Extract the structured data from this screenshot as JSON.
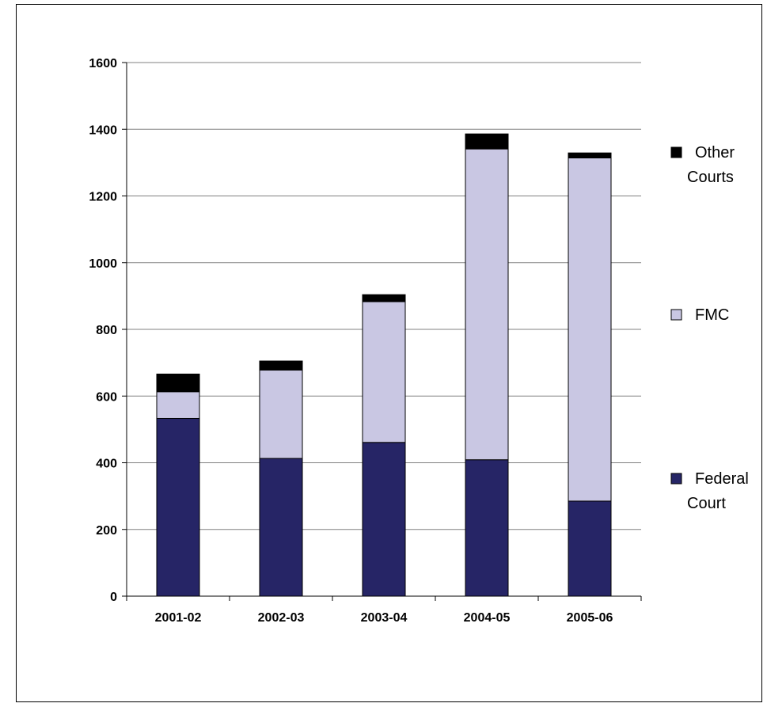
{
  "chart_data": {
    "type": "bar",
    "stacked": true,
    "categories": [
      "2001-02",
      "2002-03",
      "2003-04",
      "2004-05",
      "2005-06"
    ],
    "series": [
      {
        "name": "Federal Court",
        "color": "#262566",
        "values": [
          533,
          413,
          461,
          409,
          285
        ]
      },
      {
        "name": "FMC",
        "color": "#c9c7e3",
        "values": [
          80,
          265,
          422,
          932,
          1029
        ]
      },
      {
        "name": "Other Courts",
        "color": "#000000",
        "values": [
          53,
          27,
          21,
          45,
          15
        ]
      }
    ],
    "ylim": [
      0,
      1600
    ],
    "yticks": [
      "0",
      "200",
      "400",
      "600",
      "800",
      "1000",
      "1200",
      "1400",
      "1600"
    ],
    "grid": true,
    "legend_position": "right",
    "legend": [
      {
        "line1": "Other",
        "line2": "Courts",
        "series": "Other Courts"
      },
      {
        "line1": "FMC",
        "line2": "",
        "series": "FMC"
      },
      {
        "line1": "Federal",
        "line2": "Court",
        "series": "Federal Court"
      }
    ]
  }
}
